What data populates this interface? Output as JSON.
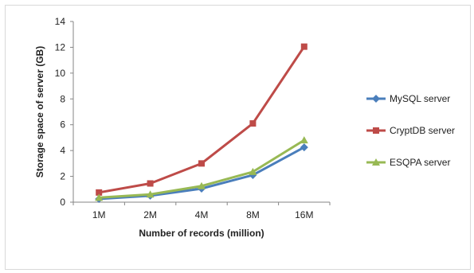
{
  "chart_data": {
    "type": "line",
    "title": "",
    "xlabel": "Number of records (million)",
    "ylabel": "Storage space of server  (GB)",
    "categories": [
      "1M",
      "2M",
      "4M",
      "8M",
      "16M"
    ],
    "ylim": [
      0,
      14
    ],
    "yticks": [
      0,
      2,
      4,
      6,
      8,
      10,
      12,
      14
    ],
    "grid": false,
    "legend_position": "right",
    "series": [
      {
        "name": "MySQL server",
        "color": "#4a7ebb",
        "marker": "diamond",
        "values": [
          0.25,
          0.5,
          1.05,
          2.1,
          4.25
        ]
      },
      {
        "name": "CryptDB server",
        "color": "#be4b48",
        "marker": "square",
        "values": [
          0.75,
          1.45,
          3.0,
          6.1,
          12.05
        ]
      },
      {
        "name": "ESQPA server",
        "color": "#98b954",
        "marker": "triangle",
        "values": [
          0.35,
          0.6,
          1.25,
          2.35,
          4.8
        ]
      }
    ]
  }
}
